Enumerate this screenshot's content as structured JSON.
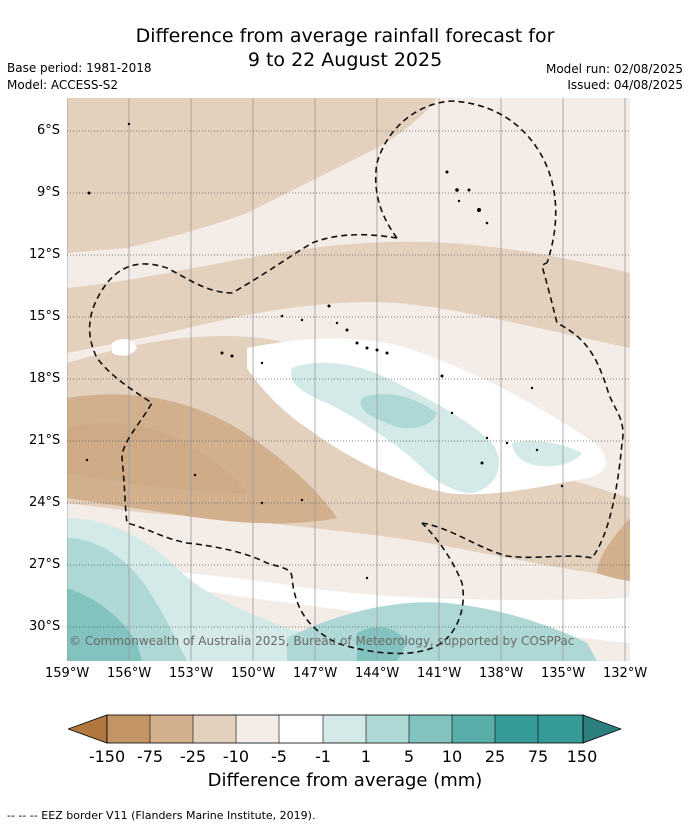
{
  "title": {
    "line1": "Difference from average rainfall forecast for",
    "line2": "9 to 22 August 2025"
  },
  "meta": {
    "base_period": "Base period: 1981-2018",
    "model": "Model: ACCESS-S2",
    "model_run": "Model run: 02/08/2025",
    "issued": "Issued: 04/08/2025"
  },
  "axes": {
    "lat_labels": [
      "6°S",
      "9°S",
      "12°S",
      "15°S",
      "18°S",
      "21°S",
      "24°S",
      "27°S",
      "30°S"
    ],
    "lon_labels": [
      "159°W",
      "156°W",
      "153°W",
      "150°W",
      "147°W",
      "144°W",
      "141°W",
      "138°W",
      "135°W",
      "132°W"
    ]
  },
  "copyright": "© Commonwealth of Australia 2025, Bureau of Meteorology, supported by COSPPac",
  "colorbar": {
    "ticks": [
      "-150",
      "-75",
      "-25",
      "-10",
      "-5",
      "-1",
      "1",
      "5",
      "10",
      "25",
      "75",
      "150"
    ],
    "colors": [
      "#b07840",
      "#c29466",
      "#d2b08e",
      "#e3d0bd",
      "#f4ece6",
      "#ffffff",
      "#d4eae8",
      "#aed8d5",
      "#82c3bf",
      "#5aaeaa",
      "#369a97",
      "#2d7f7d"
    ],
    "title": "Difference from average (mm)"
  },
  "footnote": "--  --  -- EEZ border V11 (Flanders Marine Institute, 2019)."
}
